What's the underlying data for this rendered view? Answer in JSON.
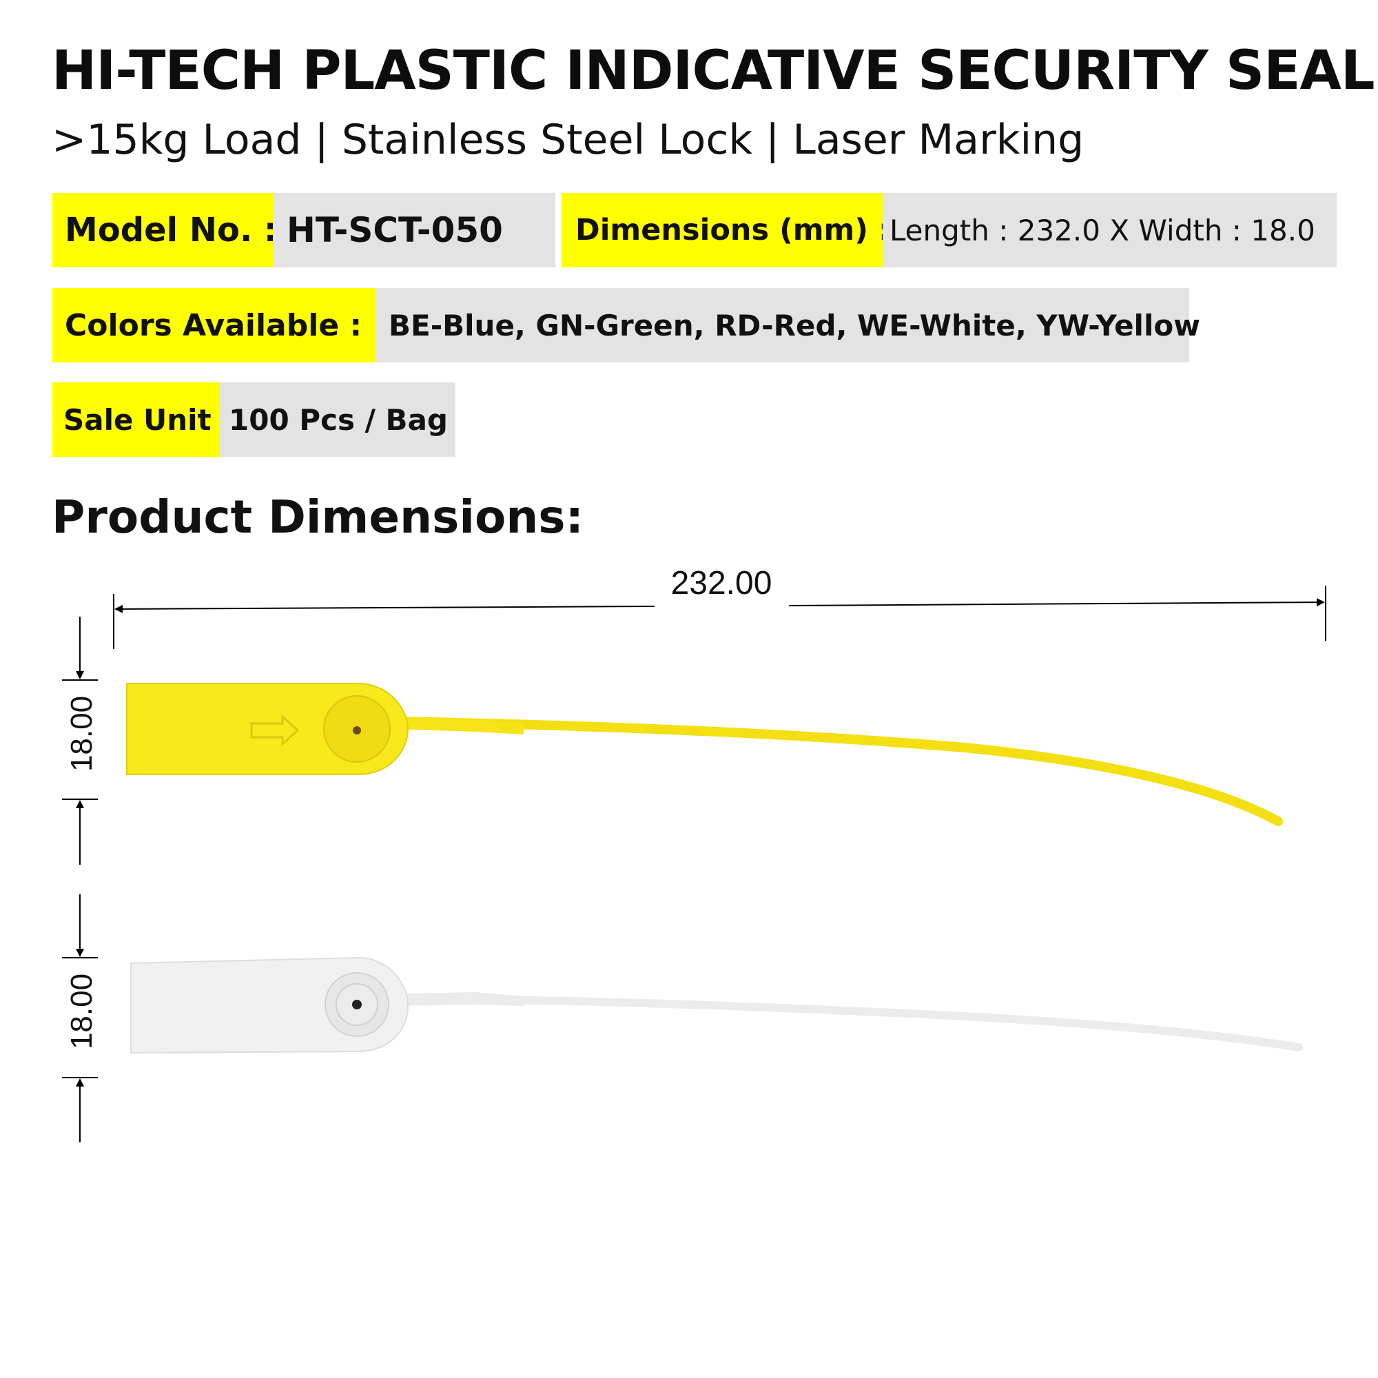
{
  "header": {
    "title": "HI-TECH PLASTIC INDICATIVE SECURITY SEAL",
    "subtitle": ">15kg Load | Stainless Steel Lock | Laser Marking"
  },
  "specs": {
    "model_label": "Model No. :",
    "model_value": "HT-SCT-050",
    "dimensions_label": "Dimensions (mm) :",
    "dimensions_value": "Length : 232.0 X  Width : 18.0",
    "colors_label": "Colors Available :",
    "colors_value": "BE-Blue, GN-Green, RD-Red, WE-White, YW-Yellow",
    "sale_unit_label": "Sale Unit :",
    "sale_unit_value": "100 Pcs / Bag"
  },
  "section": {
    "title": "Product Dimensions:"
  },
  "drawing": {
    "length_label": "232.00",
    "width_label_top": "18.00",
    "width_label_bottom": "18.00"
  },
  "colors": {
    "highlight": "#ffff00",
    "cell_gray": "#e3e3e3",
    "seal_yellow": "#f8e81c",
    "seal_white": "#f1f1f1"
  }
}
